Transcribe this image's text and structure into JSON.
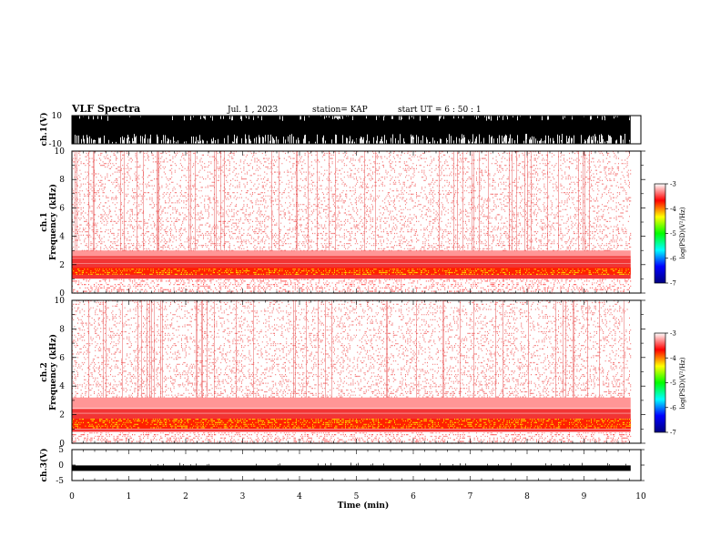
{
  "header": {
    "title": "VLF Spectra",
    "date": "Jul. 1 , 2023",
    "station": "station= KAP",
    "start_ut": "start UT = 6 : 50 : 1"
  },
  "chart_data": [
    {
      "type": "line",
      "name": "ch.1 waveform",
      "ylabel": "ch.1(V)",
      "ylim": [
        -10,
        10
      ],
      "yticks": [
        "10",
        "-10"
      ],
      "color": "#000000"
    },
    {
      "type": "heatmap",
      "name": "ch.1 spectrogram",
      "ylabel_line1": "ch.1",
      "ylabel_line2": "Frequency (kHz)",
      "ylim": [
        0,
        10
      ],
      "yticks": [
        "0",
        "2",
        "4",
        "6",
        "8",
        "10"
      ],
      "bands": [
        {
          "from": 1.3,
          "to": 1.8,
          "level": "high"
        },
        {
          "from": 1.0,
          "to": 2.6,
          "level": "medium"
        },
        {
          "from": 2.6,
          "to": 3.0,
          "level": "low"
        }
      ],
      "colorbar": {
        "label": "log(PSD)(V²/Hz)",
        "ticks": [
          "-3",
          "-4",
          "-5",
          "-6",
          "-7"
        ],
        "range": [
          -7,
          -3
        ],
        "colors": [
          "#000080",
          "#0000ff",
          "#00ffff",
          "#00ff00",
          "#ffff00",
          "#ff0000",
          "#ffffff"
        ]
      }
    },
    {
      "type": "heatmap",
      "name": "ch.2 spectrogram",
      "ylabel_line1": "ch.2",
      "ylabel_line2": "Frequency (kHz)",
      "ylim": [
        0,
        10
      ],
      "yticks": [
        "0",
        "2",
        "4",
        "6",
        "8",
        "10"
      ],
      "bands": [
        {
          "from": 1.0,
          "to": 1.7,
          "level": "high"
        },
        {
          "from": 0.8,
          "to": 2.4,
          "level": "medium"
        },
        {
          "from": 2.4,
          "to": 3.2,
          "level": "low"
        }
      ],
      "colorbar": {
        "label": "log(PSD)(V²/Hz)",
        "ticks": [
          "-3",
          "-4",
          "-5",
          "-6",
          "-7"
        ],
        "range": [
          -7,
          -3
        ],
        "colors": [
          "#000080",
          "#0000ff",
          "#00ffff",
          "#00ff00",
          "#ffff00",
          "#ff0000",
          "#ffffff"
        ]
      }
    },
    {
      "type": "line",
      "name": "ch.3 waveform",
      "ylabel": "ch.3(V)",
      "ylim": [
        -5,
        5
      ],
      "yticks": [
        "5",
        "0",
        "-5"
      ],
      "baseline": -1.0,
      "color": "#000000"
    }
  ],
  "xaxis": {
    "label": "Time (min)",
    "xlim": [
      0,
      10
    ],
    "ticks": [
      "0",
      "1",
      "2",
      "3",
      "4",
      "5",
      "6",
      "7",
      "8",
      "9",
      "10"
    ],
    "data_end": 9.82
  }
}
